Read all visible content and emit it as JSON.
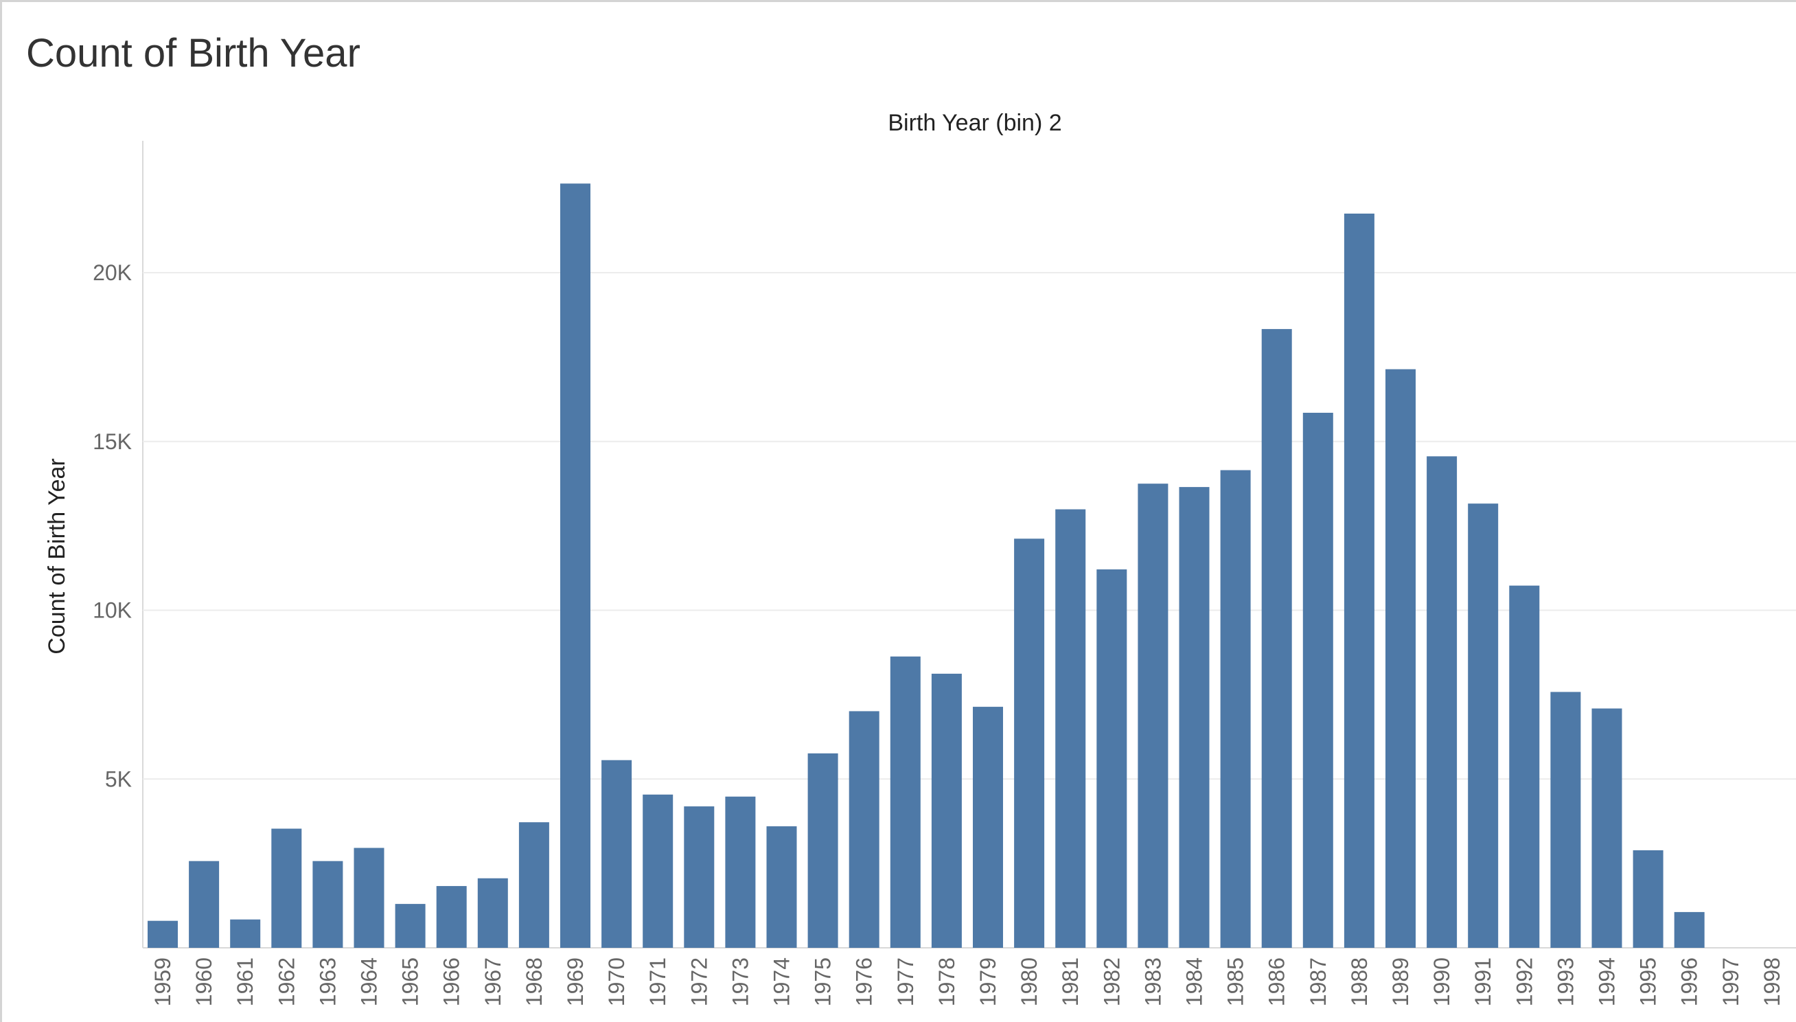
{
  "sheet": {
    "title": "Count of Birth Year"
  },
  "colors": {
    "bar": "#4e79a7",
    "gridline": "#ececec",
    "axis_line": "#d9d9d9",
    "frame_border": "#d4d4d4"
  },
  "chart_data": {
    "type": "bar",
    "title": "Count of Birth Year",
    "column_header": "Birth Year (bin) 2",
    "xlabel": "",
    "ylabel": "Count of Birth Year",
    "grid": true,
    "ylim": [
      0,
      23500
    ],
    "y_ticks": [
      {
        "value": 5000,
        "label": "5K"
      },
      {
        "value": 10000,
        "label": "10K"
      },
      {
        "value": 15000,
        "label": "15K"
      },
      {
        "value": 20000,
        "label": "20K"
      }
    ],
    "categories": [
      "1959",
      "1960",
      "1961",
      "1962",
      "1963",
      "1964",
      "1965",
      "1966",
      "1967",
      "1968",
      "1969",
      "1970",
      "1971",
      "1972",
      "1973",
      "1974",
      "1975",
      "1976",
      "1977",
      "1978",
      "1979",
      "1980",
      "1981",
      "1982",
      "1983",
      "1984",
      "1985",
      "1986",
      "1987",
      "1988",
      "1989",
      "1990",
      "1991",
      "1992",
      "1993",
      "1994",
      "1995",
      "1996",
      "1997",
      "1998"
    ],
    "values": [
      800,
      2570,
      840,
      3530,
      2570,
      2960,
      1300,
      1830,
      2060,
      3720,
      22640,
      5560,
      4540,
      4190,
      4480,
      3600,
      5760,
      7010,
      8630,
      8120,
      7140,
      12120,
      12990,
      11210,
      13750,
      13650,
      14150,
      18330,
      15850,
      21750,
      17140,
      14560,
      13160,
      10730,
      7580,
      7090,
      2890,
      1060,
      0,
      0
    ]
  }
}
